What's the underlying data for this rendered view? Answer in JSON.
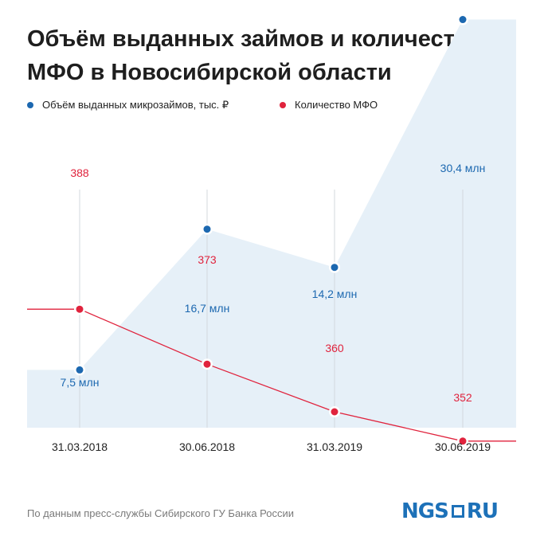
{
  "title": "Объём выданных займов и количество МФО в Новосибирской области",
  "legend": [
    {
      "label": "Объём выданных микрозаймов, тыс. ₽",
      "color": "#1c68b0"
    },
    {
      "label": "Количество МФО",
      "color": "#e0233d"
    }
  ],
  "source": "По данным пресс-службы Сибирского ГУ Банка России",
  "logo": {
    "left": "NGS",
    "right": "RU"
  },
  "colors": {
    "blue": "#1c68b0",
    "red": "#e0233d",
    "area": "#e6f0f8",
    "grid": "#d3d8de",
    "text": "#222222"
  },
  "chart_data": {
    "type": "area+line",
    "categories": [
      "31.03.2018",
      "30.06.2018",
      "31.03.2019",
      "30.06.2019"
    ],
    "series": [
      {
        "name": "Объём выданных микрозаймов, тыс. ₽",
        "kind": "area",
        "values": [
          7.5,
          16.7,
          14.2,
          30.4
        ],
        "labels": [
          "7,5 млн",
          "16,7 млн",
          "14,2 млн",
          "30,4 млн"
        ]
      },
      {
        "name": "Количество МФО",
        "kind": "line",
        "values": [
          388,
          373,
          360,
          352
        ],
        "labels": [
          "388",
          "373",
          "360",
          "352"
        ]
      }
    ],
    "ylim_volume": [
      0,
      34
    ],
    "ylim_count": [
      340,
      398
    ]
  }
}
